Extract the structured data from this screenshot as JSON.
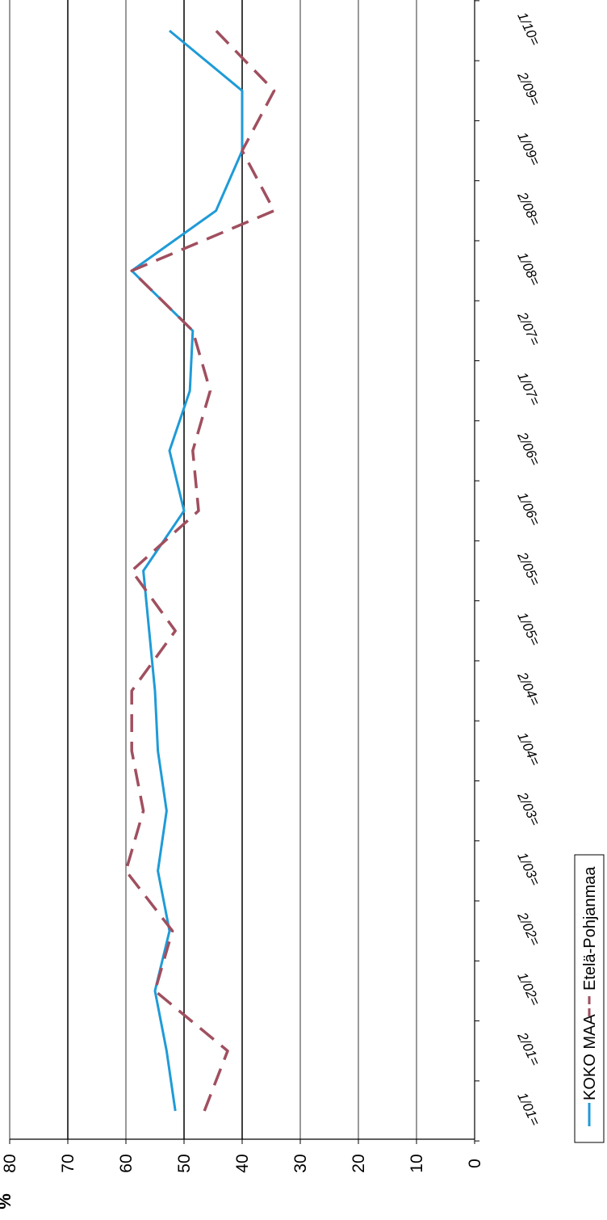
{
  "chart_data": {
    "type": "line",
    "ylabel": "%",
    "ylim": [
      0,
      80
    ],
    "yticks": [
      "0",
      "10",
      "20",
      "30",
      "40",
      "50",
      "60",
      "70",
      "80"
    ],
    "categories": [
      "1/01",
      "2/01",
      "1/02",
      "2/02",
      "1/03",
      "2/03",
      "1/04",
      "2/04",
      "1/05",
      "2/05",
      "1/06",
      "2/06",
      "1/07",
      "2/07",
      "1/08",
      "2/08",
      "1/09",
      "2/09",
      "1/10"
    ],
    "category_suffix": "=",
    "grid": true,
    "legend_placement": "bottom",
    "series": [
      {
        "name": "KOKO MAA",
        "color": "#1f9bd7",
        "dash": "solid",
        "values": [
          51.5,
          53,
          55,
          52.5,
          54.5,
          53,
          54.5,
          55,
          56,
          57,
          50,
          52.5,
          49,
          48.5,
          59,
          44.5,
          40,
          40,
          52.5
        ]
      },
      {
        "name": "Etelä-Pohjanmaa",
        "color": "#a04f5f",
        "dash": "dashed",
        "values": [
          46.5,
          42.5,
          55,
          52,
          60,
          57,
          59,
          59,
          51.5,
          59,
          47.5,
          48.5,
          45.5,
          48.5,
          59,
          34.5,
          40,
          34.5,
          44.5
        ]
      }
    ]
  }
}
